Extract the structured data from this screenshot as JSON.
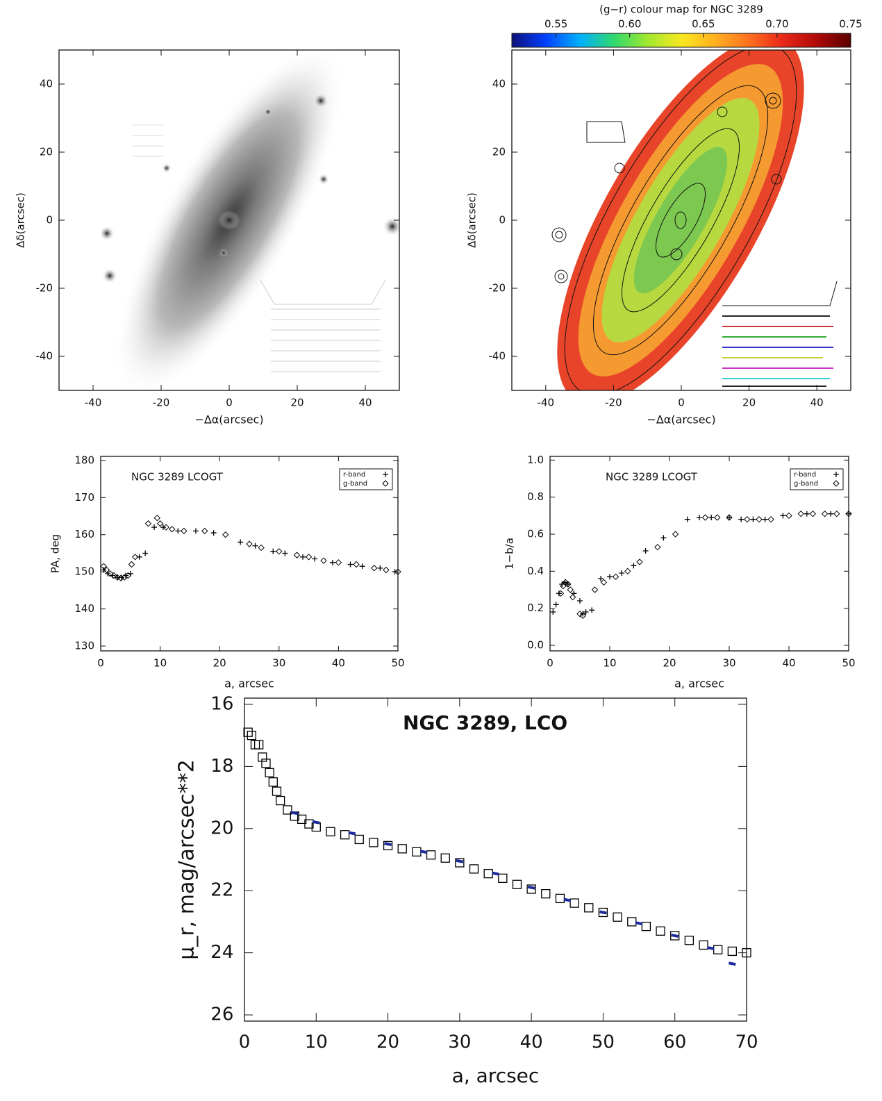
{
  "chart_data": [
    {
      "type": "image",
      "xlabel": "−Δα(arcsec)",
      "ylabel": "Δδ(arcsec)",
      "xlim": [
        -50,
        50
      ],
      "ylim": [
        -50,
        50
      ],
      "xticks": [
        -40,
        -20,
        0,
        20,
        40
      ],
      "yticks": [
        -40,
        -20,
        0,
        20,
        40
      ]
    },
    {
      "type": "image",
      "xlabel": "−Δα(arcsec)",
      "ylabel": "Δδ(arcsec)",
      "xlim": [
        -50,
        50
      ],
      "ylim": [
        -50,
        50
      ],
      "xticks": [
        -40,
        -20,
        0,
        20,
        40
      ],
      "yticks": [
        -40,
        -20,
        0,
        20,
        40
      ],
      "colorbar": {
        "title": "(g−r) colour map for NGC 3289",
        "clim": [
          0.52,
          0.75
        ],
        "ticks": [
          0.55,
          {
            "value": 0.6,
            "label": "0.60"
          },
          0.65,
          {
            "value": 0.7,
            "label": "0.70"
          },
          0.75
        ],
        "colors": [
          "#10107a",
          "#0040ff",
          "#00b0ff",
          "#30d870",
          "#a0e830",
          "#f8e820",
          "#ffb020",
          "#ff7020",
          "#e82818",
          "#b00808",
          "#5a0000"
        ]
      }
    },
    {
      "type": "scatter",
      "title": "NGC 3289 LCOGT",
      "xlabel": "a, arcsec",
      "ylabel": "PA, deg",
      "xlim": [
        0,
        50
      ],
      "ylim": [
        128.7,
        181.1
      ],
      "xticks": [
        0,
        10,
        20,
        30,
        40,
        50
      ],
      "yticks": [
        130,
        140,
        150,
        160,
        170,
        180
      ],
      "legend": "upper right",
      "series": [
        {
          "name": "r-band",
          "marker": "plus",
          "color": "#000000",
          "x": [
            0.5,
            1.2,
            2,
            2.8,
            3.5,
            4.2,
            5,
            6.5,
            7.5,
            9,
            10.5,
            13,
            16,
            19,
            23.5,
            26,
            29,
            31,
            34,
            36,
            39,
            42,
            44,
            47,
            49.5
          ],
          "values": [
            150.5,
            149.5,
            149,
            148.5,
            148.5,
            149,
            149.5,
            154,
            155,
            162,
            162,
            161,
            161,
            160.5,
            158,
            157,
            155.5,
            155,
            154,
            153.5,
            152.5,
            152,
            151.5,
            151,
            150
          ]
        },
        {
          "name": "g-band",
          "marker": "diamond",
          "color": "#000000",
          "x": [
            0.5,
            1,
            1.6,
            2.2,
            2.8,
            3.4,
            4,
            4.6,
            5.2,
            5.8,
            8,
            9.5,
            10,
            11,
            12,
            14,
            17.5,
            21,
            25,
            27,
            30,
            33,
            35,
            37.5,
            40,
            43,
            46,
            48,
            50
          ],
          "values": [
            151.5,
            150.5,
            149.5,
            149,
            148.5,
            148.3,
            148.5,
            149,
            152,
            154,
            163,
            164.5,
            163,
            162,
            161.5,
            161,
            161,
            160,
            157.5,
            156.5,
            155.5,
            154.5,
            154,
            153,
            152.5,
            152,
            151,
            150.5,
            150
          ]
        }
      ]
    },
    {
      "type": "scatter",
      "title": "NGC 3289 LCOGT",
      "xlabel": "a, arcsec",
      "ylabel": "1−b/a",
      "xlim": [
        0,
        50
      ],
      "ylim": [
        -0.03,
        1.02
      ],
      "xticks": [
        0,
        10,
        20,
        30,
        40,
        50
      ],
      "yticks": [
        {
          "value": 0,
          "label": "0.0"
        },
        0.2,
        0.4,
        0.6,
        0.8,
        {
          "value": 1,
          "label": "1.0"
        }
      ],
      "legend": "upper right",
      "series": [
        {
          "name": "r-band",
          "marker": "plus",
          "color": "#000000",
          "x": [
            0.5,
            1,
            1.5,
            2,
            2.5,
            3,
            4,
            5,
            5.5,
            6,
            7,
            8.5,
            10,
            12,
            14,
            16,
            19,
            23,
            25,
            27,
            30,
            32,
            34,
            36,
            39,
            43,
            47,
            50
          ],
          "values": [
            0.18,
            0.22,
            0.28,
            0.33,
            0.34,
            0.33,
            0.28,
            0.24,
            0.17,
            0.18,
            0.19,
            0.36,
            0.37,
            0.39,
            0.43,
            0.51,
            0.58,
            0.68,
            0.69,
            0.69,
            0.69,
            0.68,
            0.68,
            0.68,
            0.7,
            0.71,
            0.71,
            0.71
          ]
        },
        {
          "name": "g-band",
          "marker": "diamond",
          "color": "#000000",
          "x": [
            1.8,
            2.2,
            2.6,
            3,
            3.4,
            3.8,
            5,
            5.5,
            7.5,
            9,
            11,
            13,
            15,
            18,
            21,
            26,
            28,
            30,
            33,
            35,
            37,
            40,
            42,
            44,
            46,
            48,
            50
          ],
          "values": [
            0.28,
            0.32,
            0.34,
            0.33,
            0.3,
            0.26,
            0.17,
            0.16,
            0.3,
            0.34,
            0.37,
            0.4,
            0.45,
            0.53,
            0.6,
            0.69,
            0.69,
            0.69,
            0.68,
            0.68,
            0.68,
            0.7,
            0.71,
            0.71,
            0.71,
            0.71,
            0.71
          ]
        }
      ]
    },
    {
      "type": "scatter",
      "title": "NGC 3289, LCO",
      "xlabel": "a, arcsec",
      "ylabel": "μ_r, mag/arcsec**2",
      "xlim": [
        0,
        70
      ],
      "ylim": [
        26.2,
        15.8
      ],
      "xticks": [
        0,
        10,
        20,
        30,
        40,
        50,
        60,
        70
      ],
      "yticks": [
        16,
        18,
        20,
        22,
        24,
        26
      ],
      "series": [
        {
          "marker": "square",
          "color": "#000000",
          "x": [
            0.5,
            1,
            1.5,
            2,
            2.5,
            3,
            3.5,
            4,
            4.5,
            5,
            6,
            7,
            8,
            9,
            10,
            12,
            14,
            16,
            18,
            20,
            22,
            24,
            26,
            28,
            30,
            32,
            34,
            36,
            38,
            40,
            42,
            44,
            46,
            48,
            50,
            52,
            54,
            56,
            58,
            60,
            62,
            64,
            66,
            68,
            70
          ],
          "values": [
            16.9,
            17.0,
            17.3,
            17.3,
            17.7,
            17.9,
            18.2,
            18.5,
            18.8,
            19.1,
            19.4,
            19.6,
            19.7,
            19.85,
            19.95,
            20.1,
            20.2,
            20.35,
            20.45,
            20.55,
            20.65,
            20.75,
            20.85,
            20.95,
            21.1,
            21.3,
            21.45,
            21.6,
            21.8,
            21.95,
            22.1,
            22.25,
            22.4,
            22.55,
            22.7,
            22.85,
            23.0,
            23.15,
            23.3,
            23.45,
            23.6,
            23.75,
            23.9,
            23.95,
            24.0
          ]
        },
        {
          "marker": "dash",
          "color": "#1a2a9a",
          "x": [
            7,
            10,
            15,
            20,
            25,
            30,
            35,
            40,
            45,
            50,
            55,
            60,
            65,
            68
          ],
          "values": [
            19.5,
            19.8,
            20.15,
            20.5,
            20.75,
            21.05,
            21.45,
            21.9,
            22.3,
            22.7,
            23.05,
            23.45,
            23.85,
            24.35
          ]
        }
      ]
    }
  ]
}
